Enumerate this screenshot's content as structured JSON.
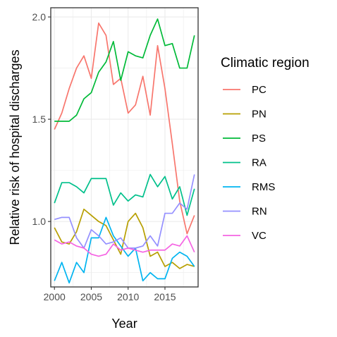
{
  "chart_data": {
    "type": "line",
    "xlabel": "Year",
    "ylabel": "Relative risk of hospital discharges",
    "xlim": [
      1999.5,
      2019.5
    ],
    "ylim": [
      0.68,
      2.045
    ],
    "x_ticks": [
      2000,
      2005,
      2010,
      2015
    ],
    "x_tick_labels": [
      "2000",
      "2005",
      "2010",
      "2015"
    ],
    "y_ticks": [
      1.0,
      1.5,
      2.0
    ],
    "y_tick_labels": [
      "1.0",
      "1.5",
      "2.0"
    ],
    "grid": true,
    "legend": {
      "title": "Climatic region",
      "position": "right"
    },
    "x": [
      2000,
      2001,
      2002,
      2003,
      2004,
      2005,
      2006,
      2007,
      2008,
      2009,
      2010,
      2011,
      2012,
      2013,
      2014,
      2015,
      2016,
      2017,
      2018,
      2019
    ],
    "series": [
      {
        "name": "PC",
        "color": "#F8766D",
        "values": [
          1.45,
          1.53,
          1.65,
          1.75,
          1.81,
          1.7,
          1.97,
          1.91,
          1.67,
          1.7,
          1.53,
          1.57,
          1.71,
          1.52,
          1.86,
          1.65,
          1.38,
          1.1,
          0.94,
          1.03
        ]
      },
      {
        "name": "PN",
        "color": "#B79F00",
        "values": [
          0.97,
          0.9,
          0.89,
          0.95,
          1.06,
          1.03,
          1.0,
          0.98,
          0.91,
          0.84,
          1.0,
          1.04,
          0.97,
          0.83,
          0.85,
          0.78,
          0.8,
          0.77,
          0.79,
          0.78
        ]
      },
      {
        "name": "PS",
        "color": "#00BA38",
        "values": [
          1.49,
          1.49,
          1.49,
          1.52,
          1.6,
          1.63,
          1.73,
          1.78,
          1.88,
          1.69,
          1.83,
          1.81,
          1.8,
          1.91,
          1.99,
          1.86,
          1.87,
          1.75,
          1.75,
          1.91
        ]
      },
      {
        "name": "RA",
        "color": "#00C08B",
        "values": [
          1.09,
          1.19,
          1.19,
          1.17,
          1.14,
          1.21,
          1.21,
          1.21,
          1.08,
          1.14,
          1.1,
          1.13,
          1.12,
          1.23,
          1.17,
          1.22,
          1.11,
          1.17,
          1.03,
          1.16
        ]
      },
      {
        "name": "RMS",
        "color": "#00B4F0",
        "values": [
          0.71,
          0.8,
          0.7,
          0.8,
          0.75,
          0.92,
          0.92,
          1.02,
          0.93,
          0.88,
          0.83,
          0.87,
          0.71,
          0.75,
          0.72,
          0.72,
          0.82,
          0.85,
          0.83,
          0.78
        ]
      },
      {
        "name": "RN",
        "color": "#9590FF",
        "values": [
          1.01,
          1.02,
          1.02,
          0.92,
          0.87,
          0.96,
          0.93,
          0.89,
          0.9,
          0.92,
          0.87,
          0.87,
          0.88,
          0.93,
          0.88,
          1.04,
          1.04,
          1.09,
          1.06,
          1.23
        ]
      },
      {
        "name": "VC",
        "color": "#F564E3",
        "values": [
          0.91,
          0.89,
          0.9,
          0.88,
          0.87,
          0.84,
          0.83,
          0.84,
          0.89,
          0.86,
          0.87,
          0.86,
          0.85,
          0.86,
          0.86,
          0.86,
          0.89,
          0.88,
          0.93,
          0.85
        ]
      }
    ]
  }
}
